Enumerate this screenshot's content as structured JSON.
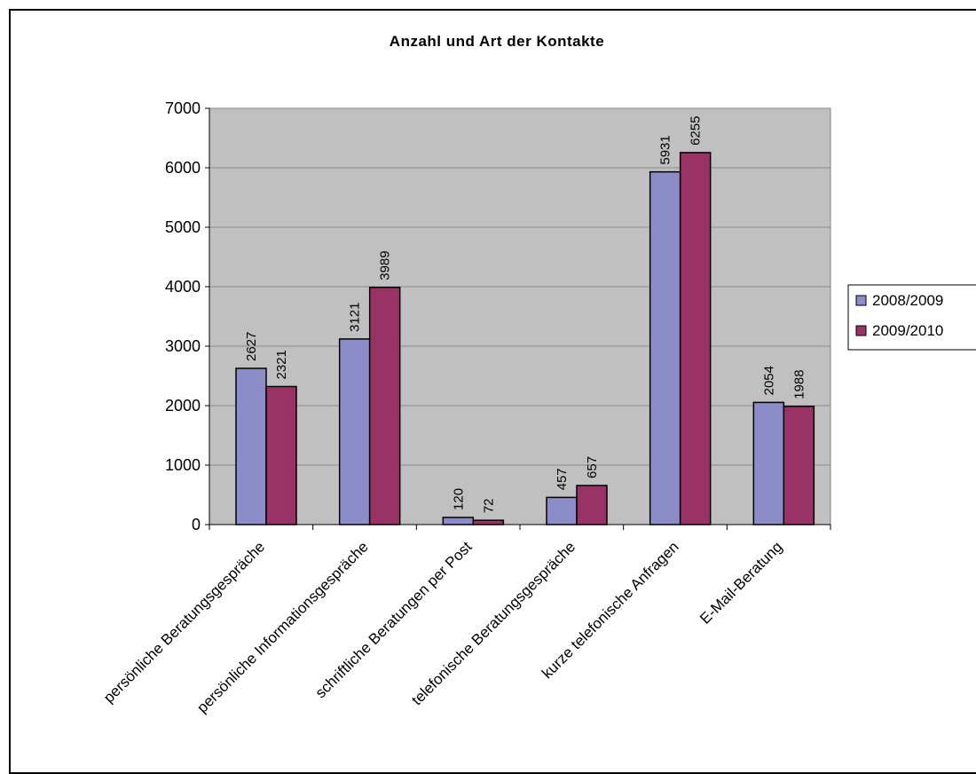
{
  "chart_data": {
    "type": "bar",
    "title": "Anzahl und Art der Kontakte",
    "xlabel": "",
    "ylabel": "",
    "ylim": [
      0,
      7000
    ],
    "yticks": [
      0,
      1000,
      2000,
      3000,
      4000,
      5000,
      6000,
      7000
    ],
    "categories": [
      "persönliche Beratungsgespräche",
      "persönliche Informationsgespräche",
      "schriftliche Beratungen per Post",
      "telefonische Beratungsgespräche",
      "kurze telefonische Anfragen",
      "E-Mail-Beratung"
    ],
    "series": [
      {
        "name": "2008/2009",
        "color": "#8C8CC8",
        "values": [
          2627,
          3121,
          120,
          457,
          5931,
          2054
        ]
      },
      {
        "name": "2009/2010",
        "color": "#993366",
        "values": [
          2321,
          3989,
          72,
          657,
          6255,
          1988
        ]
      }
    ],
    "grid": true,
    "plot_background": "#C0C0C0",
    "legend_position": "right"
  }
}
